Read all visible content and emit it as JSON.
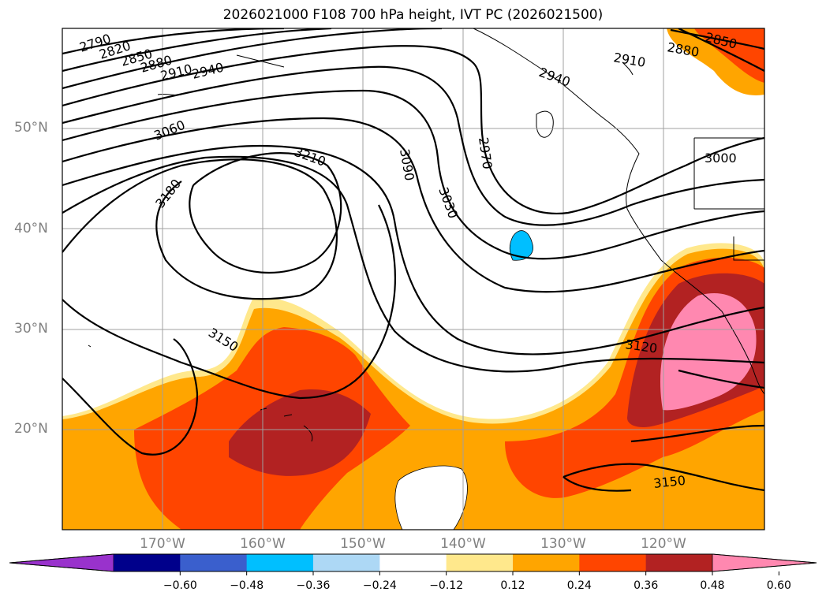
{
  "title": "2026021000 F108 700 hPa height, IVT PC (2026021500)",
  "map": {
    "lat_labels": [
      "50°N",
      "40°N",
      "30°N",
      "20°N"
    ],
    "lon_labels": [
      "170°W",
      "160°W",
      "150°W",
      "140°W",
      "130°W",
      "120°W"
    ],
    "contour_labels": [
      "2790",
      "2820",
      "2850",
      "2880",
      "2910",
      "2940",
      "3060",
      "3210",
      "3180",
      "3090",
      "3030",
      "2970",
      "2910",
      "2880",
      "2850",
      "2940",
      "3000",
      "3150",
      "3120",
      "3150"
    ],
    "contour_interval_gpm": 30
  },
  "colorbar": {
    "ticks": [
      "−0.60",
      "−0.48",
      "−0.36",
      "−0.24",
      "−0.12",
      "0.12",
      "0.24",
      "0.36",
      "0.48",
      "0.60"
    ],
    "colors": [
      "#9932cc",
      "#00008b",
      "#3a5fcd",
      "#00bfff",
      "#add8f5",
      "#ffffff",
      "#ffe88c",
      "#ffa500",
      "#ff4500",
      "#b22222",
      "#ff88b0"
    ]
  }
}
